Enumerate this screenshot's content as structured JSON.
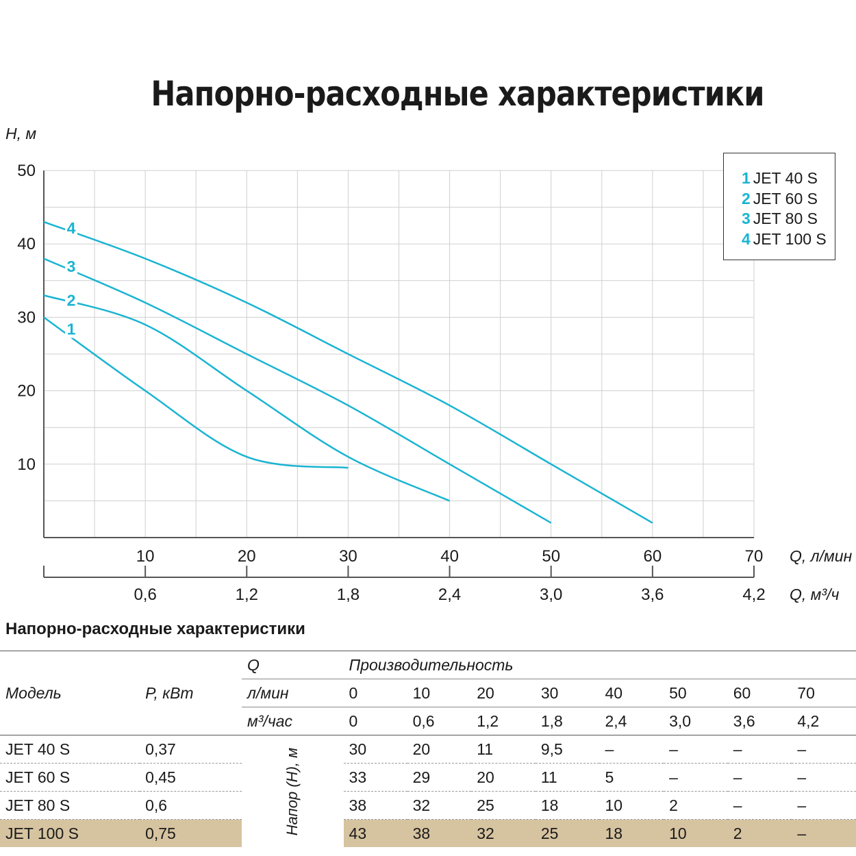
{
  "chart_data": {
    "type": "line",
    "title": "Напорно-расходные характеристики",
    "ylabel": "H, м",
    "xlabel": "Q, л/мин",
    "x2label": "Q, м³/ч",
    "ylim": [
      0,
      50
    ],
    "xlim": [
      0,
      70
    ],
    "y_ticks": [
      "10",
      "20",
      "30",
      "40",
      "50"
    ],
    "x_ticks": [
      "10",
      "20",
      "30",
      "40",
      "50",
      "60",
      "70"
    ],
    "x2_ticks": [
      "0,6",
      "1,2",
      "1,8",
      "2,4",
      "3,0",
      "3,6",
      "4,2"
    ],
    "grid": true,
    "legend_position": "top-right",
    "series_color": "#1ab4d2",
    "series": [
      {
        "name": "JET 40 S",
        "label": "1",
        "x": [
          0,
          10,
          20,
          30
        ],
        "y": [
          30,
          20,
          11,
          9.5
        ]
      },
      {
        "name": "JET 60 S",
        "label": "2",
        "x": [
          0,
          10,
          20,
          30,
          40
        ],
        "y": [
          33,
          29,
          20,
          11,
          5
        ]
      },
      {
        "name": "JET 80 S",
        "label": "3",
        "x": [
          0,
          10,
          20,
          30,
          40,
          50
        ],
        "y": [
          38,
          32,
          25,
          18,
          10,
          2
        ]
      },
      {
        "name": "JET 100 S",
        "label": "4",
        "x": [
          0,
          10,
          20,
          30,
          40,
          50,
          60
        ],
        "y": [
          43,
          38,
          32,
          25,
          18,
          10,
          2
        ]
      }
    ]
  },
  "legend": [
    {
      "num": "1",
      "name": "JET 40 S"
    },
    {
      "num": "2",
      "name": "JET 60 S"
    },
    {
      "num": "3",
      "name": "JET 80 S"
    },
    {
      "num": "4",
      "name": "JET 100 S"
    }
  ],
  "table": {
    "title": "Напорно-расходные характеристики",
    "header": {
      "q_label": "Q",
      "productivity": "Производительность",
      "model": "Модель",
      "power": "P, кВт",
      "lmin_unit": "л/мин",
      "m3h_unit": "м³/час",
      "lmin": [
        "0",
        "10",
        "20",
        "30",
        "40",
        "50",
        "60",
        "70"
      ],
      "m3h": [
        "0",
        "0,6",
        "1,2",
        "1,8",
        "2,4",
        "3,0",
        "3,6",
        "4,2"
      ],
      "head_label": "Напор (H), м"
    },
    "rows": [
      {
        "model": "JET 40 S",
        "power": "0,37",
        "values": [
          "30",
          "20",
          "11",
          "9,5",
          "–",
          "–",
          "–",
          "–"
        ]
      },
      {
        "model": "JET 60 S",
        "power": "0,45",
        "values": [
          "33",
          "29",
          "20",
          "11",
          "5",
          "–",
          "–",
          "–"
        ]
      },
      {
        "model": "JET 80 S",
        "power": "0,6",
        "values": [
          "38",
          "32",
          "25",
          "18",
          "10",
          "2",
          "–",
          "–"
        ]
      },
      {
        "model": "JET 100 S",
        "power": "0,75",
        "values": [
          "43",
          "38",
          "32",
          "25",
          "18",
          "10",
          "2",
          "–"
        ],
        "highlight": true
      }
    ]
  }
}
